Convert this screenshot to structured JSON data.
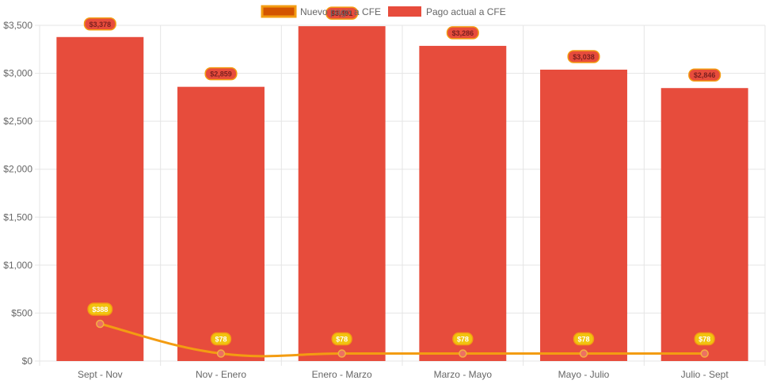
{
  "chart_data": {
    "type": "bar",
    "categories": [
      "Sept - Nov",
      "Nov - Enero",
      "Enero - Marzo",
      "Marzo - Mayo",
      "Mayo - Julio",
      "Julio - Sept"
    ],
    "series": [
      {
        "name": "Nuevo pago a CFE",
        "type": "line",
        "color": "#f39c12",
        "values": [
          388,
          78,
          78,
          78,
          78,
          78
        ],
        "labels": [
          "$388",
          "$78",
          "$78",
          "$78",
          "$78",
          "$78"
        ]
      },
      {
        "name": "Pago actual a CFE",
        "type": "bar",
        "color": "#e74c3c",
        "values": [
          3378,
          2859,
          3491,
          3286,
          3038,
          2846
        ],
        "labels": [
          "$3,378",
          "$2,859",
          "$3,491",
          "$3,286",
          "$3,038",
          "$2,846"
        ]
      }
    ],
    "y_ticks": [
      "$0",
      "$500",
      "$1,000",
      "$1,500",
      "$2,000",
      "$2,500",
      "$3,000",
      "$3,500"
    ],
    "ylim": [
      0,
      3500
    ],
    "grid": true,
    "legend": "top-center"
  },
  "legend": {
    "line_label": "Nuevo pago a CFE",
    "bar_label": "Pago actual a CFE"
  }
}
